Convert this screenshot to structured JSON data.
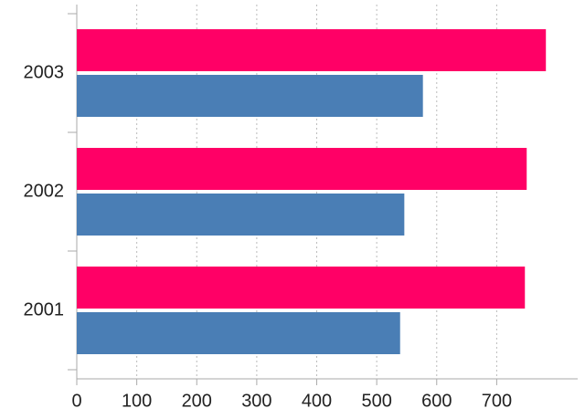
{
  "chart_data": {
    "type": "barh",
    "categories": [
      "2001",
      "2002",
      "2003"
    ],
    "series": [
      {
        "color": "#ff0066",
        "values": [
          747,
          750,
          782
        ]
      },
      {
        "color": "#4a7eb5",
        "values": [
          539,
          546,
          577
        ]
      }
    ],
    "xlim": [
      0,
      835
    ],
    "xticks": [
      0,
      100,
      200,
      300,
      400,
      500,
      600,
      700
    ],
    "grid": true
  }
}
